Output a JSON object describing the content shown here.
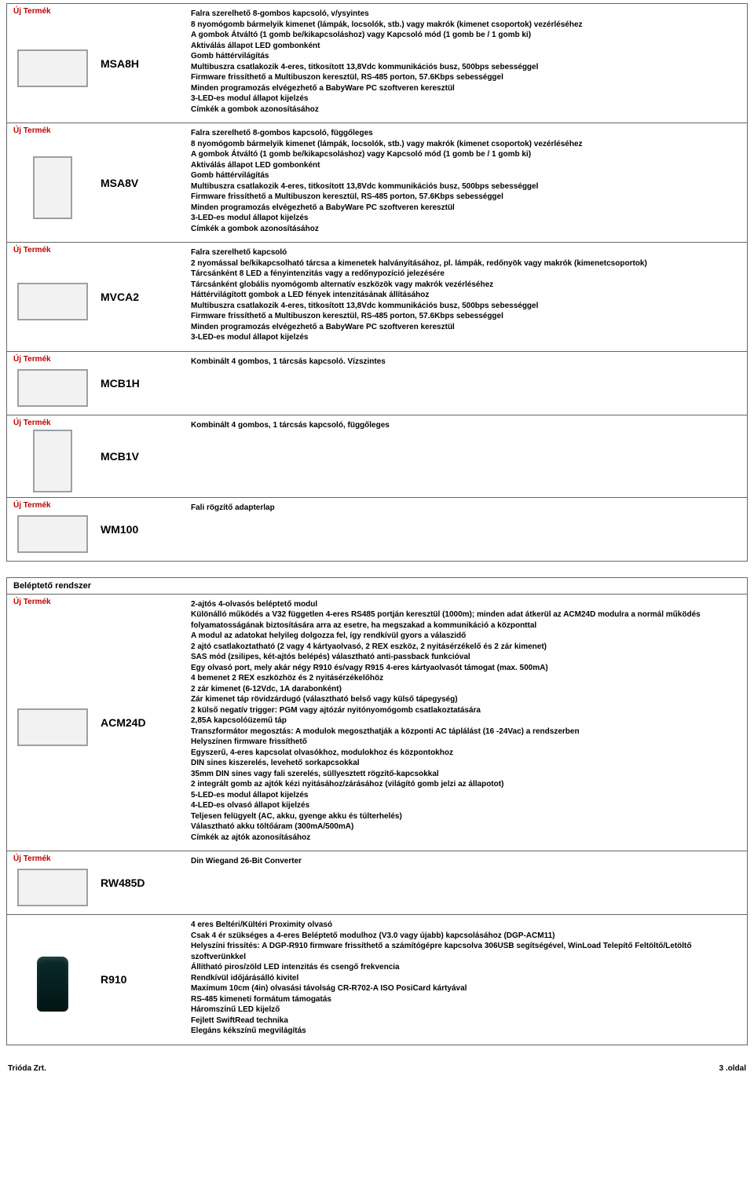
{
  "labels": {
    "new": "Új Termék"
  },
  "products": [
    {
      "code": "MSA8H",
      "new": true,
      "thumbClass": "thumb wide",
      "desc": "Falra szerelhető 8-gombos kapcsoló, v/ysyintes\n8 nyomógomb bármelyik kimenet (lámpák, locsolók, stb.) vagy makrók (kimenet csoportok) vezérléséhez\nA gombok Átváltó (1 gomb be/kikapcsoláshoz) vagy Kapcsoló mód (1 gomb be / 1 gomb ki)\nAktiválás állapot LED gombonként\nGomb háttérvilágítás\nMultibuszra csatlakozik 4-eres, titkosított 13,8Vdc kommunikációs busz, 500bps sebességgel\nFirmware frissíthető a Multibuszon keresztül, RS-485 porton, 57.6Kbps sebességgel\nMinden programozás elvégezhető a BabyWare PC szoftveren keresztül\n3-LED-es modul állapot kijelzés\nCímkék a gombok azonosításához"
    },
    {
      "code": "MSA8V",
      "new": true,
      "thumbClass": "thumb tall",
      "desc": "Falra szerelhető 8-gombos kapcsoló, függőleges\n8 nyomógomb bármelyik kimenet (lámpák, locsolók, stb.) vagy makrók (kimenet csoportok) vezérléséhez\nA gombok Átváltó (1 gomb be/kikapcsoláshoz) vagy Kapcsoló mód (1 gomb be / 1 gomb ki)\nAktiválás állapot LED gombonként\nGomb háttérvilágítás\nMultibuszra csatlakozik 4-eres, titkosított 13,8Vdc kommunikációs busz, 500bps sebességgel\nFirmware frissíthető a Multibuszon keresztül, RS-485 porton, 57.6Kbps sebességgel\nMinden programozás elvégezhető a BabyWare PC szoftveren keresztül\n3-LED-es modul állapot kijelzés\nCímkék a gombok azonosításához"
    },
    {
      "code": "MVCA2",
      "new": true,
      "thumbClass": "thumb wide",
      "desc": "Falra szerelhető kapcsoló\n2 nyomással be/kikapcsolható tárcsa a kimenetek halványításához, pl. lámpák, redőnyök vagy makrók (kimenetcsoportok)\nTárcsánként 8 LED a fényintenzitás vagy a redőnypozíció jelezésére\nTárcsánként globális nyomógomb alternatív eszközök vagy makrók vezérléséhez\nHáttérvilágított gombok a LED fények intenzitásának állításához\nMultibuszra csatlakozik 4-eres, titkosított 13,8Vdc kommunikációs busz, 500bps sebességgel\nFirmware frissíthető a Multibuszon keresztül, RS-485 porton, 57.6Kbps sebességgel\nMinden programozás elvégezhető a BabyWare PC szoftveren keresztül\n3-LED-es modul állapot kijelzés"
    },
    {
      "code": "MCB1H",
      "new": true,
      "thumbClass": "thumb wide",
      "desc": "Kombinált 4 gombos, 1 tárcsás kapcsoló. Vízszintes"
    },
    {
      "code": "MCB1V",
      "new": true,
      "thumbClass": "thumb tall",
      "desc": "Kombinált 4 gombos, 1 tárcsás kapcsoló, függőleges"
    },
    {
      "code": "WM100",
      "new": true,
      "thumbClass": "thumb wide",
      "desc": "Fali rögzítő adapterlap"
    }
  ],
  "section2": {
    "title": "Beléptető rendszer"
  },
  "products2": [
    {
      "code": "ACM24D",
      "new": true,
      "thumbClass": "thumb wide",
      "desc": "2-ajtós 4-olvasós beléptető modul\nKülönálló működés a V32 független 4-eres RS485 portján keresztül (1000m); minden adat átkerül az ACM24D modulra a normál működés folyamatosságának biztosítására arra az esetre, ha megszakad a kommunikáció a központtal\nA modul az adatokat helyileg dolgozza fel, így rendkívül gyors a válaszidő\n2 ajtó csatlakoztatható (2 vagy 4 kártyaolvasó, 2 REX eszköz, 2 nyitásérzékelő és 2 zár kimenet)\nSAS mód (zsilipes, két-ajtós belépés) választható anti-passback funkcióval\nEgy olvasó port, mely akár négy R910 és/vagy R915 4-eres kártyaolvasót támogat (max. 500mA)\n4 bemenet 2 REX eszközhöz és 2 nyitásérzékelőhöz\n2 zár kimenet (6-12Vdc, 1A darabonként)\nZár kimenet táp rövidzárdugó (választható belső vagy külső tápegység)\n2 külső negatív trigger: PGM vagy ajtózár nyitónyomógomb csatlakoztatására\n2,85A kapcsolóüzemű táp\nTranszformátor megosztás: A modulok megoszthatják a központi AC táplálást (16 -24Vac) a rendszerben\nHelyszínen firmware frissíthető\nEgyszerű, 4-eres kapcsolat olvasókhoz, modulokhoz és központokhoz\nDIN sines kiszerelés, levehető sorkapcsokkal\n35mm DIN sines vagy fali szerelés, süllyesztett rögzítő-kapcsokkal\n2 integrált gomb az ajtók kézi nyitásához/zárásához (világító gomb jelzi az állapotot)\n5-LED-es modul állapot kijelzés\n4-LED-es olvasó állapot kijelzés\nTeljesen felügyelt (AC, akku, gyenge akku és túlterhelés)\nVálasztható akku töltőáram (300mA/500mA)\nCímkék az ajtók azonosításához"
    },
    {
      "code": "RW485D",
      "new": true,
      "thumbClass": "thumb wide",
      "desc": "Din Wiegand 26-Bit Converter"
    },
    {
      "code": "R910",
      "new": false,
      "thumbClass": "prox",
      "desc": "4 eres Beltéri/Kültéri Proximity olvasó\nCsak 4 ér szükséges a 4-eres Beléptető modulhoz (V3.0 vagy újabb) kapcsolásához (DGP-ACM11)\nHelyszíni frissítés: A DGP-R910 firmware frissíthető a számítógépre kapcsolva 306USB segítségével, WinLoad Telepítő Feltöltő/Letöltő szoftverünkkel\nÁllítható piros/zöld LED intenzitás és csengő frekvencia\nRendkívül időjárásálló kivitel\nMaximum 10cm (4in) olvasási távolság CR-R702-A ISO PosiCard kártyával\nRS-485 kimeneti formátum támogatás\nHáromszínű LED kijelző\nFejlett SwiftRead technika\nElegáns kékszínű megvilágítás"
    }
  ],
  "footer": {
    "left": "Trióda Zrt.",
    "right": "3 .oldal"
  }
}
